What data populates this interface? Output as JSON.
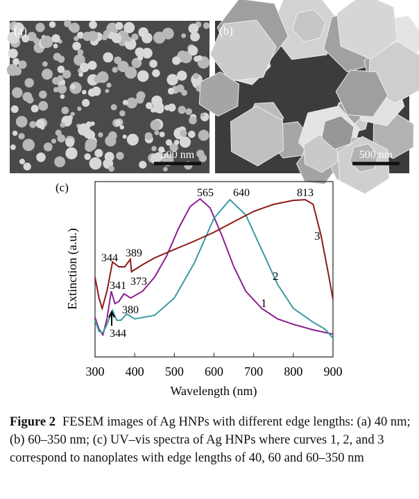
{
  "panels": {
    "a": {
      "label": "(a)",
      "scale": "500 nm"
    },
    "b": {
      "label": "(b)",
      "scale": "500 nm"
    }
  },
  "chart_data": {
    "type": "line",
    "panel_label": "(c)",
    "x_label": "Wavelength (nm)",
    "y_label": "Extinction (a.u.)",
    "xlim": [
      300,
      900
    ],
    "xticks": [
      300,
      400,
      500,
      600,
      700,
      800,
      900
    ],
    "ylim": [
      0,
      1
    ],
    "series": [
      {
        "name": "1",
        "color": "#8b1f8f",
        "x": [
          300,
          310,
          320,
          330,
          341,
          350,
          360,
          373,
          390,
          420,
          450,
          480,
          510,
          540,
          565,
          590,
          620,
          650,
          680,
          720,
          760,
          800,
          850,
          900
        ],
        "values": [
          0.225,
          0.158,
          0.126,
          0.217,
          0.375,
          0.304,
          0.316,
          0.36,
          0.336,
          0.375,
          0.455,
          0.573,
          0.731,
          0.858,
          0.901,
          0.85,
          0.692,
          0.514,
          0.375,
          0.277,
          0.217,
          0.186,
          0.154,
          0.13
        ]
      },
      {
        "name": "2",
        "color": "#3a9aa0",
        "x": [
          300,
          310,
          320,
          330,
          344,
          355,
          365,
          380,
          400,
          450,
          500,
          550,
          600,
          640,
          680,
          720,
          760,
          800,
          850,
          880,
          900
        ],
        "values": [
          0.209,
          0.146,
          0.138,
          0.186,
          0.265,
          0.209,
          0.209,
          0.245,
          0.217,
          0.237,
          0.336,
          0.534,
          0.791,
          0.897,
          0.81,
          0.613,
          0.415,
          0.277,
          0.198,
          0.158,
          0.107
        ]
      },
      {
        "name": "3",
        "color": "#8b1a1a",
        "x": [
          300,
          310,
          318,
          330,
          344,
          360,
          375,
          389,
          392,
          420,
          450,
          500,
          550,
          600,
          650,
          700,
          750,
          800,
          830,
          850,
          870,
          890,
          900
        ],
        "values": [
          0.455,
          0.336,
          0.277,
          0.375,
          0.542,
          0.514,
          0.514,
          0.557,
          0.486,
          0.526,
          0.565,
          0.613,
          0.66,
          0.711,
          0.771,
          0.83,
          0.87,
          0.893,
          0.897,
          0.87,
          0.692,
          0.455,
          0.328
        ]
      }
    ],
    "annotations": [
      "565",
      "640",
      "813",
      "344",
      "389",
      "341",
      "373",
      "380",
      "344"
    ]
  },
  "caption": {
    "label": "Figure 2",
    "text": "FESEM images of Ag HNPs with different edge lengths: (a) 40 nm; (b) 60–350 nm; (c) UV–vis spectra of Ag HNPs where curves 1, 2, and 3 correspond to nanoplates with edge lengths of 40, 60 and 60–350 nm"
  }
}
